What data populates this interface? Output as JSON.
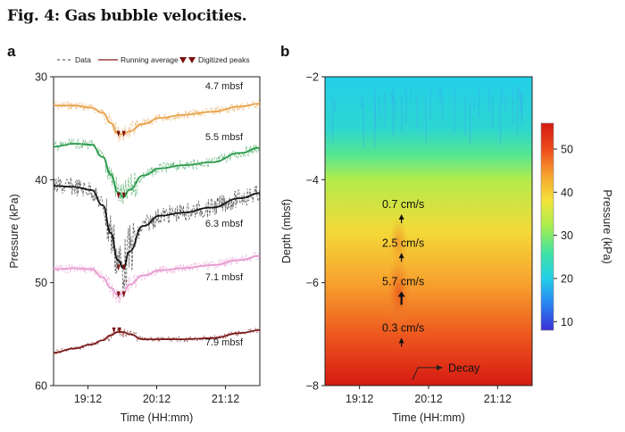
{
  "figure": {
    "title": "Fig. 4: Gas bubble velocities.",
    "panel_a_letter": "a",
    "panel_b_letter": "b"
  },
  "colors": {
    "orange": "#e8a24a",
    "green": "#2a9a4a",
    "black": "#151515",
    "pink": "#e79ad0",
    "darkred": "#7a1a1a",
    "peak_marker": "#7a1010"
  },
  "chart_data": [
    {
      "type": "line",
      "panel": "a",
      "xlabel": "Time (HH:mm)",
      "ylabel": "Pressure (kPa)",
      "x_ticks": [
        "19:12",
        "20:12",
        "21:12"
      ],
      "x_tick_minutes": [
        1152,
        1212,
        1272
      ],
      "xlim_minutes": [
        1122,
        1302
      ],
      "y_ticks": [
        30,
        40,
        50,
        60
      ],
      "ylim": [
        30,
        60
      ],
      "y_inverted": true,
      "legend": [
        "Data",
        "Running average",
        "Digitized peaks"
      ],
      "legend_position": "top",
      "x_minutes": [
        1122,
        1140,
        1155,
        1165,
        1172,
        1178,
        1183,
        1188,
        1200,
        1215,
        1235,
        1260,
        1285,
        1302
      ],
      "series": [
        {
          "label": "4.7 mbsf",
          "color_key": "orange",
          "values": [
            32.8,
            32.8,
            33.0,
            33.5,
            34.5,
            35.5,
            35.6,
            35.3,
            34.6,
            34.0,
            33.7,
            33.4,
            32.9,
            32.6
          ],
          "peak": {
            "x_minutes": 1181,
            "y": 35.6
          }
        },
        {
          "label": "5.5 mbsf",
          "color_key": "green",
          "values": [
            36.8,
            36.5,
            36.6,
            37.8,
            39.5,
            41.2,
            41.7,
            41.0,
            39.6,
            38.9,
            38.6,
            38.3,
            37.4,
            36.9
          ],
          "peak": {
            "x_minutes": 1181,
            "y": 41.6
          }
        },
        {
          "label": "6.3 mbsf",
          "color_key": "black",
          "values": [
            40.6,
            40.7,
            41.0,
            42.5,
            45.2,
            47.8,
            48.6,
            47.0,
            44.5,
            43.5,
            43.2,
            42.7,
            41.8,
            41.3
          ],
          "peak": {
            "x_minutes": 1181,
            "y": 48.6
          }
        },
        {
          "label": "7.1 mbsf",
          "color_key": "pink",
          "values": [
            48.7,
            48.6,
            48.7,
            49.5,
            50.5,
            51.2,
            51.0,
            50.2,
            49.3,
            48.8,
            48.6,
            48.3,
            47.8,
            47.4
          ],
          "peak": {
            "x_minutes": 1181,
            "y": 51.2
          }
        },
        {
          "label": "7.9 mbsf",
          "color_key": "darkred",
          "values": [
            56.8,
            56.4,
            56.0,
            55.6,
            55.1,
            54.8,
            54.8,
            55.0,
            55.5,
            55.5,
            55.5,
            55.4,
            54.9,
            54.6
          ],
          "peak": {
            "x_minutes": 1177,
            "y": 54.7
          }
        }
      ]
    },
    {
      "type": "heatmap",
      "panel": "b",
      "xlabel": "Time (HH:mm)",
      "ylabel": "Depth (mbsf)",
      "x_ticks": [
        "19:12",
        "20:12",
        "21:12"
      ],
      "x_tick_minutes": [
        1152,
        1212,
        1272
      ],
      "xlim_minutes": [
        1122,
        1302
      ],
      "y_ticks": [
        -2,
        -4,
        -6,
        -8
      ],
      "ylim": [
        -8,
        -2
      ],
      "colorbar": {
        "label": "Pressure (kPa)",
        "ticks": [
          10,
          20,
          30,
          40,
          50
        ],
        "range": [
          8,
          56
        ],
        "stops": [
          "#3b2fd6",
          "#2a82f2",
          "#23cfe8",
          "#42e3a2",
          "#a6ee4f",
          "#f3e43a",
          "#f7a22e",
          "#ec4a1c",
          "#d41a12"
        ]
      },
      "pressure_by_depth": [
        {
          "depth": -2.0,
          "pressure": 20
        },
        {
          "depth": -3.0,
          "pressure": 22
        },
        {
          "depth": -3.5,
          "pressure": 27
        },
        {
          "depth": -4.0,
          "pressure": 33
        },
        {
          "depth": -5.0,
          "pressure": 39
        },
        {
          "depth": -6.0,
          "pressure": 44
        },
        {
          "depth": -7.0,
          "pressure": 49
        },
        {
          "depth": -7.6,
          "pressure": 53
        },
        {
          "depth": -8.0,
          "pressure": 56
        }
      ],
      "annotations": [
        {
          "text": "0.7 cm/s",
          "x_minutes": 1190,
          "depth": -4.55
        },
        {
          "text": "2.5 cm/s",
          "x_minutes": 1190,
          "depth": -5.3
        },
        {
          "text": "5.7 cm/s",
          "x_minutes": 1190,
          "depth": -6.05
        },
        {
          "text": "0.3 cm/s",
          "x_minutes": 1190,
          "depth": -6.95
        },
        {
          "text": "Decay",
          "x_minutes": 1212,
          "depth": -7.65
        }
      ]
    }
  ]
}
